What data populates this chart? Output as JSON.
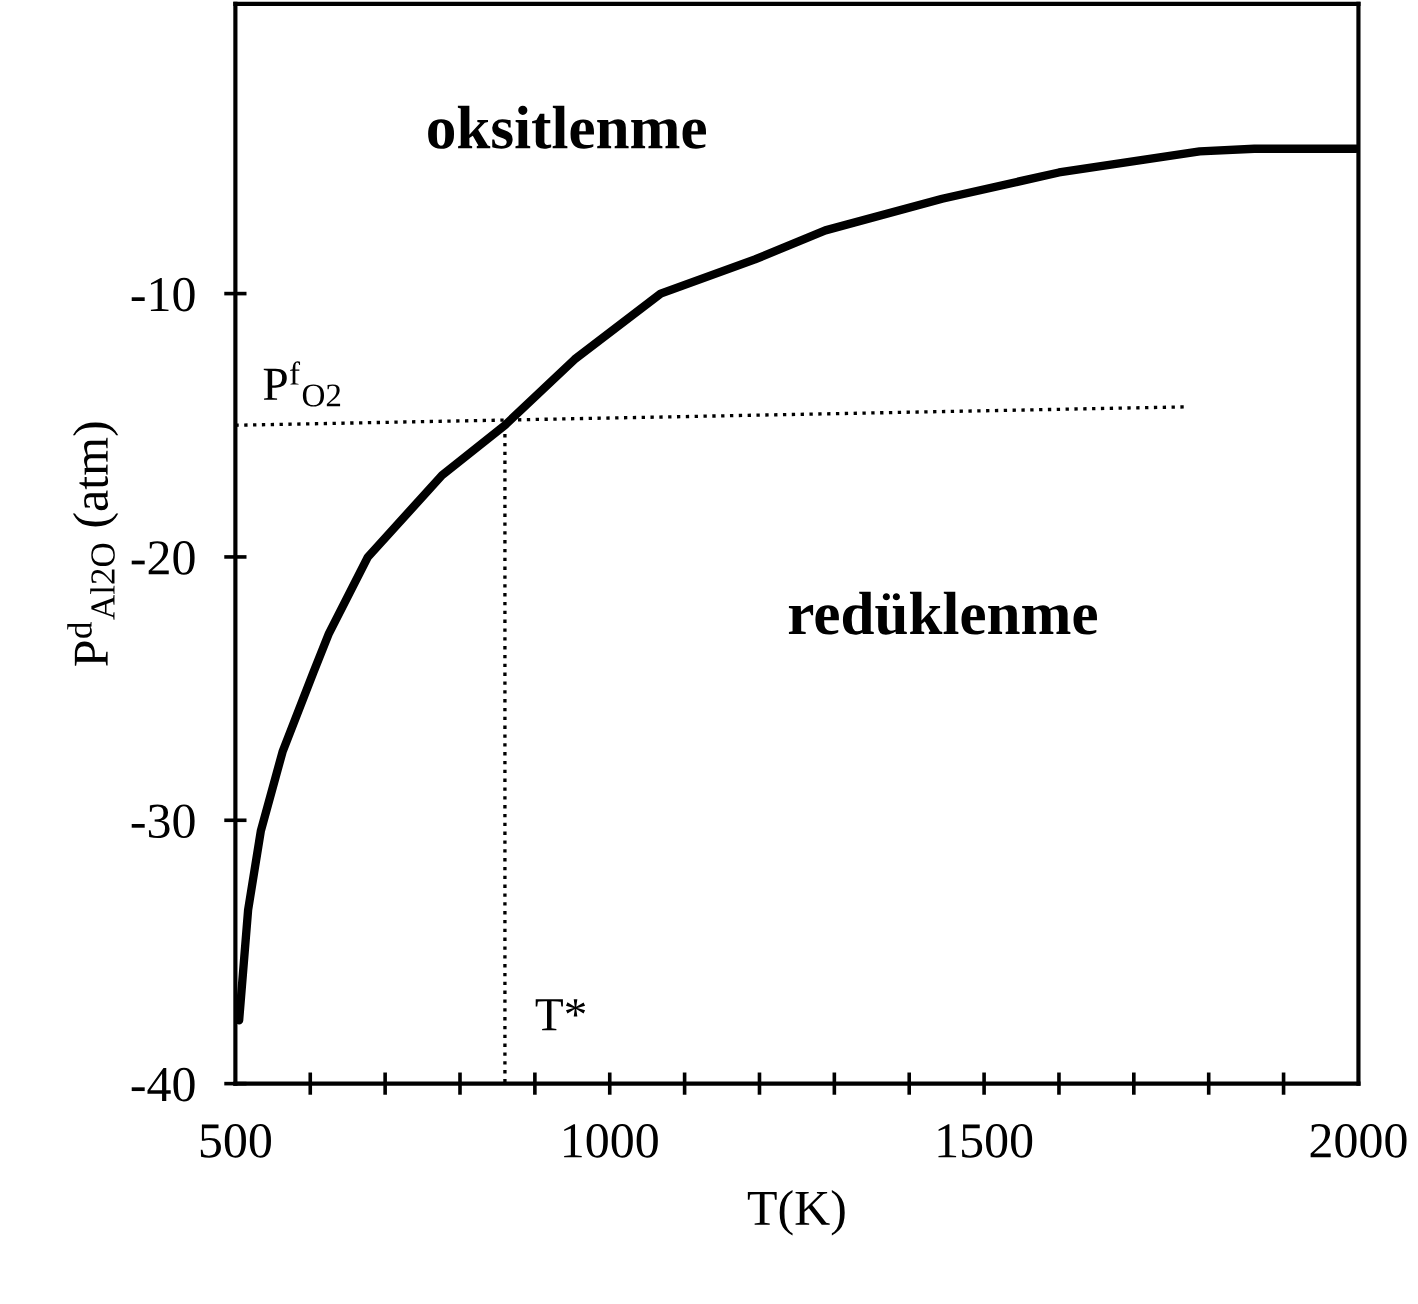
{
  "chart_data": {
    "type": "line",
    "xlabel": "T(K)",
    "ylabel": "P$^{d}$$_{Al2O}$ (atm)",
    "xlim": [
      500,
      2000
    ],
    "ylim": [
      -40,
      1
    ],
    "xticks": [
      500,
      {
        "value": 600,
        "label": null
      },
      {
        "value": 700,
        "label": null
      },
      {
        "value": 800,
        "label": null
      },
      {
        "value": 900,
        "label": null
      },
      1000,
      {
        "value": 1100,
        "label": null
      },
      {
        "value": 1200,
        "label": null
      },
      {
        "value": 1300,
        "label": null
      },
      {
        "value": 1400,
        "label": null
      },
      1500,
      {
        "value": 1600,
        "label": null
      },
      {
        "value": 1700,
        "label": null
      },
      {
        "value": 1800,
        "label": null
      },
      {
        "value": 1900,
        "label": null
      },
      2000
    ],
    "yticks": [
      -10,
      -20,
      -30,
      -40
    ],
    "grid": false,
    "legend": false,
    "series": [
      {
        "color": "#000000",
        "line_style": "solid",
        "x": [
          505,
          517,
          534,
          563,
          604,
          625,
          677,
          776,
          860,
          953,
          1068,
          1194,
          1288,
          1444,
          1600,
          1788,
          1861,
          1997
        ],
        "values": [
          -37.6,
          -33.4,
          -30.4,
          -27.4,
          -24.4,
          -22.9,
          -20,
          -16.9,
          -15,
          -12.5,
          -10,
          -8.7,
          -7.6,
          -6.4,
          -5.4,
          -4.6,
          -4.5,
          -4.5
        ]
      },
      {
        "color": "#000000",
        "line_style": "dotted",
        "x": [
          500,
          1772
        ],
        "values": [
          -15,
          -14.3
        ]
      },
      {
        "color": "#000000",
        "line_style": "dotted",
        "x": [
          860,
          860
        ],
        "values": [
          -15,
          -40
        ]
      }
    ],
    "annotations": [
      "oksitlenme",
      "redüklenme",
      "P$^{f}$$_{O2}$",
      "T*"
    ]
  }
}
